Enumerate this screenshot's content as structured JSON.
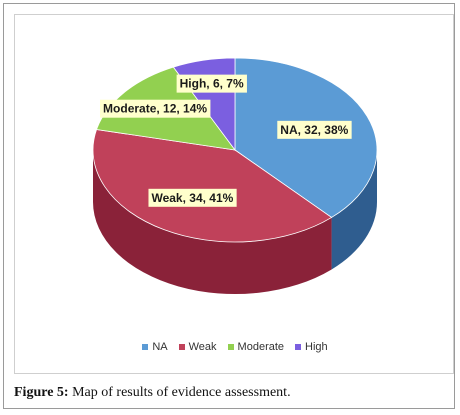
{
  "chart_data": {
    "type": "pie",
    "slices": [
      {
        "name": "NA",
        "value": 32,
        "percent": 38,
        "label": "NA, 32, 38%",
        "color": "#5b9bd5",
        "side": "#2f5d8f"
      },
      {
        "name": "Weak",
        "value": 34,
        "percent": 41,
        "label": "Weak, 34, 41%",
        "color": "#c0415a",
        "side": "#8a2239"
      },
      {
        "name": "Moderate",
        "value": 12,
        "percent": 14,
        "label": "Moderate, 12, 14%",
        "color": "#92d050",
        "side": "#5f9a28"
      },
      {
        "name": "High",
        "value": 6,
        "percent": 7,
        "label": "High, 6, 7%",
        "color": "#7b5fe0",
        "side": "#4e36a8"
      }
    ],
    "legend": [
      "NA",
      "Weak",
      "Moderate",
      "High"
    ],
    "legend_position": "bottom",
    "label_background": "#ffffcc",
    "style": "3d"
  },
  "caption": {
    "prefix": "Figure 5:",
    "text": "Map of results of evidence assessment."
  }
}
